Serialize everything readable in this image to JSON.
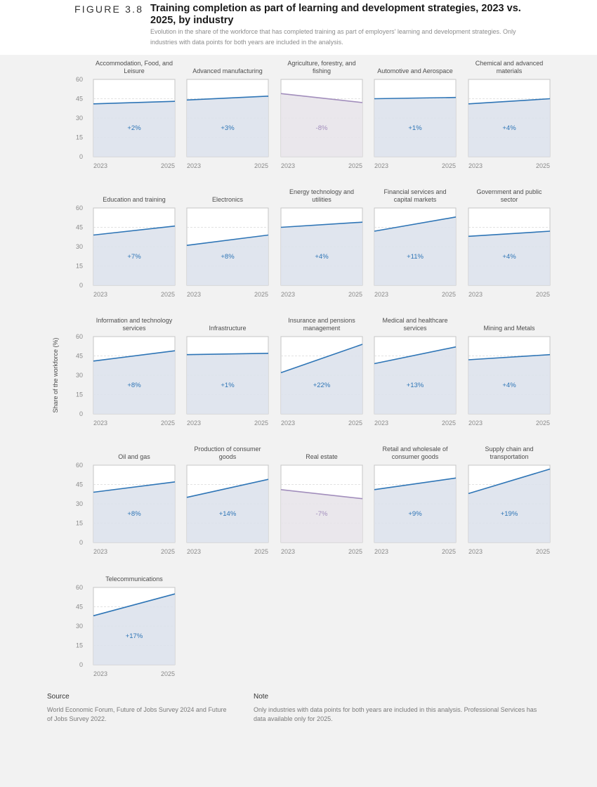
{
  "figure": {
    "label": "FIGURE 3.8",
    "title": "Training completion as part of learning and development strategies, 2023 vs. 2025, by industry",
    "subtitle": "Evolution in the share of the workforce that has completed training as part of employers' learning and development strategies. Only industries with data points for both years are included in the analysis."
  },
  "chart_data": {
    "type": "area",
    "ylabel": "Share of the workforce (%)",
    "ylim": [
      0,
      60
    ],
    "yticks": [
      "0",
      "15",
      "30",
      "45",
      "60"
    ],
    "x": [
      "2023",
      "2025"
    ],
    "grid": "dashed horizontal gridlines",
    "colors": {
      "increase": "#2e75b6",
      "decrease": "#a28ebc",
      "increase_fill": "#dde2ec",
      "decrease_fill": "#e8e4ea"
    },
    "panels": [
      {
        "name": "Accommodation, Food, and Leisure",
        "values": [
          41,
          43
        ],
        "change": "+2%"
      },
      {
        "name": "Advanced manufacturing",
        "values": [
          44,
          47
        ],
        "change": "+3%"
      },
      {
        "name": "Agriculture, forestry, and fishing",
        "values": [
          49,
          42
        ],
        "change": "-8%"
      },
      {
        "name": "Automotive and Aerospace",
        "values": [
          45,
          46
        ],
        "change": "+1%"
      },
      {
        "name": "Chemical and advanced materials",
        "values": [
          41,
          45
        ],
        "change": "+4%"
      },
      {
        "name": "Education and training",
        "values": [
          39,
          46
        ],
        "change": "+7%"
      },
      {
        "name": "Electronics",
        "values": [
          31,
          39
        ],
        "change": "+8%"
      },
      {
        "name": "Energy technology and utilities",
        "values": [
          45,
          49
        ],
        "change": "+4%"
      },
      {
        "name": "Financial services and capital markets",
        "values": [
          42,
          53
        ],
        "change": "+11%"
      },
      {
        "name": "Government and public sector",
        "values": [
          38,
          42
        ],
        "change": "+4%"
      },
      {
        "name": "Information and technology services",
        "values": [
          41,
          49
        ],
        "change": "+8%"
      },
      {
        "name": "Infrastructure",
        "values": [
          46,
          47
        ],
        "change": "+1%"
      },
      {
        "name": "Insurance and pensions management",
        "values": [
          32,
          54
        ],
        "change": "+22%"
      },
      {
        "name": "Medical and healthcare services",
        "values": [
          39,
          52
        ],
        "change": "+13%"
      },
      {
        "name": "Mining and Metals",
        "values": [
          42,
          46
        ],
        "change": "+4%"
      },
      {
        "name": "Oil and gas",
        "values": [
          39,
          47
        ],
        "change": "+8%"
      },
      {
        "name": "Production of consumer goods",
        "values": [
          35,
          49
        ],
        "change": "+14%"
      },
      {
        "name": "Real estate",
        "values": [
          41,
          34
        ],
        "change": "-7%"
      },
      {
        "name": "Retail and wholesale of consumer goods",
        "values": [
          41,
          50
        ],
        "change": "+9%"
      },
      {
        "name": "Supply chain and transportation",
        "values": [
          38,
          57
        ],
        "change": "+19%"
      },
      {
        "name": "Telecommunications",
        "values": [
          38,
          55
        ],
        "change": "+17%"
      }
    ]
  },
  "footer": {
    "source_heading": "Source",
    "source_text": "World Economic Forum, Future of Jobs Survey 2024 and Future of Jobs Survey 2022.",
    "note_heading": "Note",
    "note_text": "Only industries with data points for both years are included in this analysis. Professional Services has data available only for 2025."
  }
}
